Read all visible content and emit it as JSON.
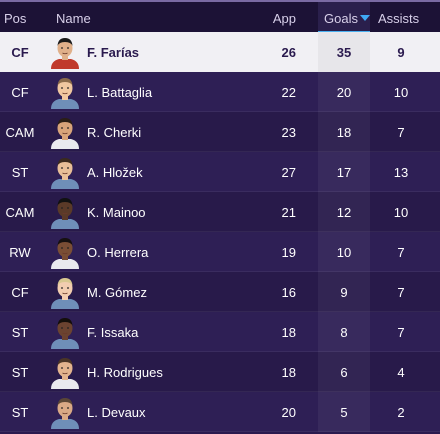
{
  "header": {
    "pos": "Pos",
    "name": "Name",
    "app": "App",
    "goals": "Goals",
    "assists": "Assists"
  },
  "sort": {
    "column": "goals",
    "direction": "descending",
    "arrow_color": "#3fa9f5"
  },
  "players": [
    {
      "pos": "CF",
      "name": "F. Farías",
      "app": "26",
      "goals": "35",
      "assists": "9",
      "selected": true,
      "shirt": "#c0392b"
    },
    {
      "pos": "CF",
      "name": "L. Battaglia",
      "app": "22",
      "goals": "20",
      "assists": "10",
      "selected": false,
      "shirt": "#6f8fb8"
    },
    {
      "pos": "CAM",
      "name": "R. Cherki",
      "app": "23",
      "goals": "18",
      "assists": "7",
      "selected": false,
      "shirt": "#e9e9ee"
    },
    {
      "pos": "ST",
      "name": "A. Hložek",
      "app": "27",
      "goals": "17",
      "assists": "13",
      "selected": false,
      "shirt": "#6f8fb8"
    },
    {
      "pos": "CAM",
      "name": "K. Mainoo",
      "app": "21",
      "goals": "12",
      "assists": "10",
      "selected": false,
      "shirt": "#6f8fb8"
    },
    {
      "pos": "RW",
      "name": "O. Herrera",
      "app": "19",
      "goals": "10",
      "assists": "7",
      "selected": false,
      "shirt": "#e9e9ee"
    },
    {
      "pos": "CF",
      "name": "M. Gómez",
      "app": "16",
      "goals": "9",
      "assists": "7",
      "selected": false,
      "shirt": "#6f8fb8"
    },
    {
      "pos": "ST",
      "name": "F. Issaka",
      "app": "18",
      "goals": "8",
      "assists": "7",
      "selected": false,
      "shirt": "#6f8fb8"
    },
    {
      "pos": "ST",
      "name": "H. Rodrigues",
      "app": "18",
      "goals": "6",
      "assists": "4",
      "selected": false,
      "shirt": "#e9e9ee"
    },
    {
      "pos": "ST",
      "name": "L. Devaux",
      "app": "20",
      "goals": "5",
      "assists": "2",
      "selected": false,
      "shirt": "#6f8fb8"
    }
  ]
}
